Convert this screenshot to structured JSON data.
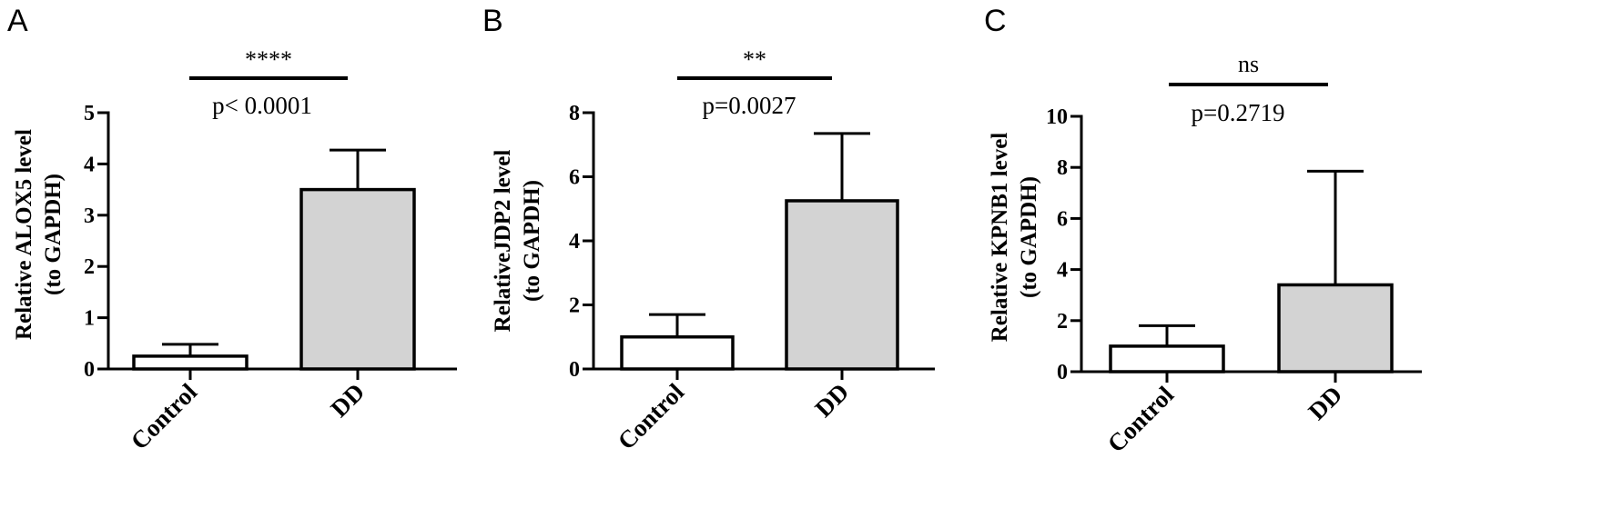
{
  "chart_data": [
    {
      "panel": "A",
      "type": "bar",
      "categories": [
        "Control",
        "DD"
      ],
      "values": [
        0.25,
        3.5
      ],
      "error_upper": [
        0.48,
        4.27
      ],
      "bar_colors": [
        "#ffffff",
        "#d3d3d3"
      ],
      "ylabel": [
        "Relative ALOX5 level",
        "(to GAPDH)"
      ],
      "ylim": [
        0,
        5
      ],
      "yticks": [
        "0",
        "1",
        "2",
        "3",
        "4",
        "5"
      ],
      "significance": "****",
      "pvalue": "p< 0.0001"
    },
    {
      "panel": "B",
      "type": "bar",
      "categories": [
        "Control",
        "DD"
      ],
      "values": [
        1.0,
        5.25
      ],
      "error_upper": [
        1.7,
        7.35
      ],
      "bar_colors": [
        "#ffffff",
        "#d3d3d3"
      ],
      "ylabel": [
        "RelativeJDP2 level",
        "(to GAPDH)"
      ],
      "ylim": [
        0,
        8
      ],
      "yticks": [
        "0",
        "2",
        "4",
        "6",
        "8"
      ],
      "significance": "**",
      "pvalue": "p=0.0027"
    },
    {
      "panel": "C",
      "type": "bar",
      "categories": [
        "Control",
        "DD"
      ],
      "values": [
        1.0,
        3.4
      ],
      "error_upper": [
        1.8,
        7.85
      ],
      "bar_colors": [
        "#ffffff",
        "#d3d3d3"
      ],
      "ylabel": [
        "Relative KPNB1 level",
        "(to GAPDH)"
      ],
      "ylim": [
        0,
        10
      ],
      "yticks": [
        "0",
        "2",
        "4",
        "6",
        "8",
        "10"
      ],
      "significance": "ns",
      "pvalue": "p=0.2719"
    }
  ]
}
